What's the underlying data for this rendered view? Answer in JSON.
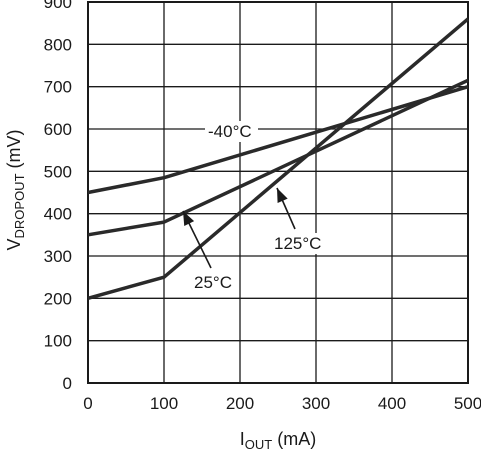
{
  "chart_data": {
    "type": "line",
    "xlabel": {
      "main": "I",
      "sub": "OUT",
      "unit": " (mA)"
    },
    "ylabel": {
      "main": "V",
      "sub": "DROPOUT",
      "unit": " (mV)"
    },
    "xlim": [
      0,
      500
    ],
    "ylim": [
      0,
      900
    ],
    "xticks": [
      0,
      100,
      200,
      300,
      400,
      500
    ],
    "yticks": [
      0,
      100,
      200,
      300,
      400,
      500,
      600,
      700,
      800,
      900
    ],
    "grid": true,
    "series": [
      {
        "name": "-40°C",
        "x": [
          0,
          100,
          500
        ],
        "y": [
          450,
          485,
          700
        ]
      },
      {
        "name": "25°C",
        "x": [
          0,
          100,
          500
        ],
        "y": [
          350,
          380,
          715
        ]
      },
      {
        "name": "125°C",
        "x": [
          0,
          100,
          500
        ],
        "y": [
          200,
          250,
          860
        ]
      }
    ],
    "annotations": [
      {
        "text": "-40°C",
        "series": "-40°C",
        "arrow": false
      },
      {
        "text": "25°C",
        "series": "25°C",
        "arrow": true
      },
      {
        "text": "125°C",
        "series": "125°C",
        "arrow": true
      }
    ]
  }
}
